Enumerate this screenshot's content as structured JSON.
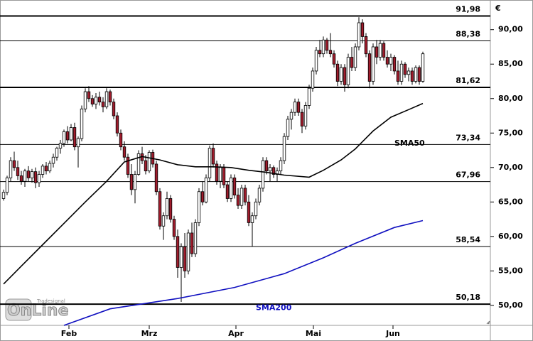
{
  "chart_data": {
    "type": "candlestick",
    "unit": "€",
    "logo": "OnLine",
    "logo_sub": "Tradesignal",
    "xlim": [
      -1,
      137
    ],
    "ylim": [
      47.1,
      94.3
    ],
    "yticks": [
      {
        "value": 50,
        "label": "50,00"
      },
      {
        "value": 55,
        "label": "55,00"
      },
      {
        "value": 60,
        "label": "60,00"
      },
      {
        "value": 65,
        "label": "65,00"
      },
      {
        "value": 70,
        "label": "70,00"
      },
      {
        "value": 75,
        "label": "75,00"
      },
      {
        "value": 80,
        "label": "80,00"
      },
      {
        "value": 85,
        "label": "85,00"
      },
      {
        "value": 90,
        "label": "90,00"
      }
    ],
    "xticks": [
      {
        "value": 18.4,
        "label": "Feb"
      },
      {
        "value": 41,
        "label": "Mrz"
      },
      {
        "value": 65.4,
        "label": "Apr"
      },
      {
        "value": 87.2,
        "label": "Mai"
      },
      {
        "value": 109.6,
        "label": "Jun"
      }
    ],
    "up_color": "#ffffff",
    "down_color": "#a01c2c",
    "levels": [
      {
        "value": 91.98,
        "label": "91,98",
        "bold": true
      },
      {
        "value": 88.38,
        "label": "88,38",
        "bold": false
      },
      {
        "value": 81.62,
        "label": "81,62",
        "bold": true
      },
      {
        "value": 73.34,
        "label": "73,34",
        "bold": false
      },
      {
        "value": 67.96,
        "label": "67,96",
        "bold": false
      },
      {
        "value": 58.54,
        "label": "58,54",
        "bold": false
      },
      {
        "value": 50.18,
        "label": "50,18",
        "bold": true
      }
    ],
    "ohlc": [
      [
        65.5,
        66.8,
        65.2,
        66.4
      ],
      [
        66.4,
        68.8,
        66.0,
        68.5
      ],
      [
        68.5,
        71.5,
        68.0,
        71.0
      ],
      [
        71.0,
        72.3,
        69.5,
        70.0
      ],
      [
        70.0,
        71.0,
        68.2,
        68.8
      ],
      [
        68.8,
        69.5,
        67.5,
        68.0
      ],
      [
        68.0,
        69.8,
        67.2,
        69.5
      ],
      [
        69.5,
        70.2,
        68.0,
        68.5
      ],
      [
        68.5,
        69.8,
        67.8,
        69.4
      ],
      [
        69.4,
        70.0,
        67.0,
        67.8
      ],
      [
        67.8,
        69.5,
        67.2,
        69.0
      ],
      [
        69.0,
        70.5,
        68.5,
        70.2
      ],
      [
        70.2,
        70.8,
        69.0,
        69.5
      ],
      [
        69.5,
        71.0,
        69.2,
        70.6
      ],
      [
        70.6,
        72.0,
        70.0,
        71.5
      ],
      [
        71.5,
        73.0,
        71.0,
        72.8
      ],
      [
        72.8,
        74.0,
        72.0,
        73.5
      ],
      [
        73.5,
        75.5,
        73.0,
        75.2
      ],
      [
        75.2,
        76.0,
        73.5,
        74.0
      ],
      [
        74.0,
        76.3,
        73.8,
        75.8
      ],
      [
        75.8,
        76.5,
        72.5,
        73.0
      ],
      [
        73.0,
        74.5,
        70.0,
        74.2
      ],
      [
        74.2,
        79.0,
        73.8,
        78.5
      ],
      [
        78.5,
        81.5,
        78.0,
        81.0
      ],
      [
        81.0,
        81.8,
        79.5,
        80.0
      ],
      [
        80.0,
        80.5,
        78.8,
        79.2
      ],
      [
        79.2,
        80.8,
        78.5,
        80.2
      ],
      [
        80.2,
        81.0,
        79.0,
        79.5
      ],
      [
        79.5,
        80.2,
        78.0,
        78.8
      ],
      [
        78.8,
        81.5,
        78.5,
        81.0
      ],
      [
        81.0,
        81.3,
        79.0,
        79.5
      ],
      [
        79.5,
        80.0,
        77.0,
        77.5
      ],
      [
        77.5,
        78.0,
        74.5,
        75.0
      ],
      [
        75.0,
        75.5,
        72.5,
        73.0
      ],
      [
        73.0,
        73.8,
        71.0,
        71.5
      ],
      [
        71.5,
        72.0,
        68.5,
        69.0
      ],
      [
        69.0,
        70.5,
        66.0,
        66.8
      ],
      [
        66.8,
        69.5,
        64.8,
        69.0
      ],
      [
        69.0,
        72.5,
        68.8,
        72.0
      ],
      [
        72.0,
        73.0,
        70.5,
        71.0
      ],
      [
        71.0,
        71.8,
        69.0,
        69.5
      ],
      [
        69.5,
        72.5,
        69.2,
        72.2
      ],
      [
        72.2,
        72.6,
        70.0,
        70.5
      ],
      [
        70.5,
        71.0,
        66.0,
        66.5
      ],
      [
        66.5,
        67.0,
        61.0,
        61.5
      ],
      [
        61.5,
        63.5,
        59.5,
        63.0
      ],
      [
        63.0,
        66.5,
        62.5,
        65.5
      ],
      [
        65.5,
        66.0,
        62.0,
        62.5
      ],
      [
        62.5,
        63.0,
        59.5,
        60.0
      ],
      [
        60.0,
        61.0,
        54.0,
        55.5
      ],
      [
        55.5,
        59.0,
        50.5,
        58.5
      ],
      [
        58.5,
        60.5,
        54.0,
        55.0
      ],
      [
        55.0,
        61.0,
        54.5,
        60.5
      ],
      [
        60.5,
        62.0,
        57.0,
        57.5
      ],
      [
        57.5,
        62.5,
        57.0,
        62.0
      ],
      [
        62.0,
        67.0,
        61.5,
        66.5
      ],
      [
        66.5,
        68.0,
        64.5,
        65.0
      ],
      [
        65.0,
        69.0,
        64.8,
        68.5
      ],
      [
        68.5,
        73.2,
        68.0,
        72.8
      ],
      [
        72.8,
        73.5,
        70.0,
        70.5
      ],
      [
        70.5,
        71.0,
        67.5,
        68.0
      ],
      [
        68.0,
        70.5,
        67.0,
        70.0
      ],
      [
        70.0,
        70.5,
        67.0,
        67.5
      ],
      [
        67.5,
        68.0,
        65.0,
        65.5
      ],
      [
        65.5,
        69.0,
        65.0,
        68.5
      ],
      [
        68.5,
        69.0,
        65.5,
        66.0
      ],
      [
        66.0,
        67.0,
        64.0,
        64.5
      ],
      [
        64.5,
        67.5,
        64.0,
        67.0
      ],
      [
        67.0,
        67.5,
        64.5,
        65.0
      ],
      [
        65.0,
        66.0,
        61.5,
        62.0
      ],
      [
        62.0,
        63.5,
        58.5,
        63.0
      ],
      [
        63.0,
        65.5,
        62.5,
        65.0
      ],
      [
        65.0,
        67.5,
        64.5,
        67.0
      ],
      [
        67.0,
        71.5,
        66.5,
        71.0
      ],
      [
        71.0,
        71.5,
        69.0,
        69.5
      ],
      [
        69.5,
        70.5,
        68.0,
        70.0
      ],
      [
        70.0,
        70.3,
        68.5,
        69.0
      ],
      [
        69.0,
        70.0,
        68.0,
        69.5
      ],
      [
        69.5,
        71.5,
        69.0,
        71.0
      ],
      [
        71.0,
        75.0,
        70.5,
        74.5
      ],
      [
        74.5,
        77.5,
        74.0,
        77.0
      ],
      [
        77.0,
        78.5,
        75.5,
        78.0
      ],
      [
        78.0,
        80.0,
        77.5,
        79.5
      ],
      [
        79.5,
        80.0,
        77.5,
        78.0
      ],
      [
        78.0,
        78.5,
        75.0,
        76.0
      ],
      [
        76.0,
        79.5,
        75.5,
        79.0
      ],
      [
        79.0,
        82.0,
        78.5,
        81.5
      ],
      [
        81.5,
        84.5,
        81.0,
        84.0
      ],
      [
        84.0,
        87.5,
        83.5,
        87.0
      ],
      [
        87.0,
        88.5,
        86.0,
        86.5
      ],
      [
        86.5,
        89.0,
        86.0,
        88.5
      ],
      [
        88.5,
        88.8,
        86.5,
        87.0
      ],
      [
        87.0,
        89.5,
        86.0,
        86.5
      ],
      [
        86.5,
        87.0,
        84.5,
        85.0
      ],
      [
        85.0,
        85.5,
        81.8,
        82.5
      ],
      [
        82.5,
        85.0,
        82.0,
        84.5
      ],
      [
        84.5,
        85.0,
        81.0,
        82.0
      ],
      [
        82.0,
        86.5,
        81.5,
        86.0
      ],
      [
        86.0,
        87.5,
        84.0,
        84.5
      ],
      [
        84.5,
        88.0,
        84.0,
        87.5
      ],
      [
        87.5,
        91.8,
        87.0,
        91.0
      ],
      [
        91.0,
        91.5,
        88.0,
        89.0
      ],
      [
        89.0,
        89.5,
        86.0,
        86.5
      ],
      [
        86.5,
        87.0,
        81.5,
        82.5
      ],
      [
        82.5,
        88.0,
        82.0,
        87.5
      ],
      [
        87.5,
        88.5,
        85.0,
        86.0
      ],
      [
        86.0,
        88.5,
        85.5,
        88.0
      ],
      [
        88.0,
        88.3,
        85.5,
        86.0
      ],
      [
        86.0,
        87.0,
        84.5,
        85.0
      ],
      [
        85.0,
        86.5,
        84.0,
        86.0
      ],
      [
        86.0,
        86.3,
        83.5,
        84.0
      ],
      [
        84.0,
        85.5,
        82.0,
        82.5
      ],
      [
        82.5,
        85.5,
        82.0,
        85.0
      ],
      [
        85.0,
        85.3,
        83.0,
        83.5
      ],
      [
        83.5,
        84.5,
        82.5,
        84.0
      ],
      [
        84.0,
        84.5,
        82.0,
        82.5
      ],
      [
        82.5,
        84.8,
        82.2,
        84.5
      ],
      [
        84.5,
        84.8,
        82.0,
        82.5
      ],
      [
        82.5,
        86.8,
        82.3,
        86.5
      ]
    ],
    "series": [
      {
        "name": "SMA50",
        "color": "#000000",
        "x": [
          0,
          5,
          11,
          17,
          23,
          29,
          34,
          39,
          44,
          49,
          54,
          59,
          64,
          69,
          74,
          79,
          86,
          90,
          95,
          99,
          104,
          109,
          114,
          118
        ],
        "values": [
          53.1,
          55.7,
          58.8,
          61.9,
          65.0,
          68.0,
          70.8,
          71.6,
          71.1,
          70.4,
          70.1,
          70.1,
          70.0,
          69.6,
          69.3,
          68.9,
          68.6,
          69.6,
          71.1,
          72.7,
          75.3,
          77.3,
          78.4,
          79.3
        ],
        "label_at": [
          110,
          73.5
        ]
      },
      {
        "name": "SMA200",
        "color": "#1010c0",
        "x": [
          17,
          30,
          49,
          65,
          79,
          90,
          99,
          110,
          118
        ],
        "values": [
          47.1,
          49.5,
          51.0,
          52.6,
          54.6,
          56.9,
          59.0,
          61.3,
          62.3
        ],
        "label_at": [
          71,
          49.6
        ]
      }
    ]
  }
}
